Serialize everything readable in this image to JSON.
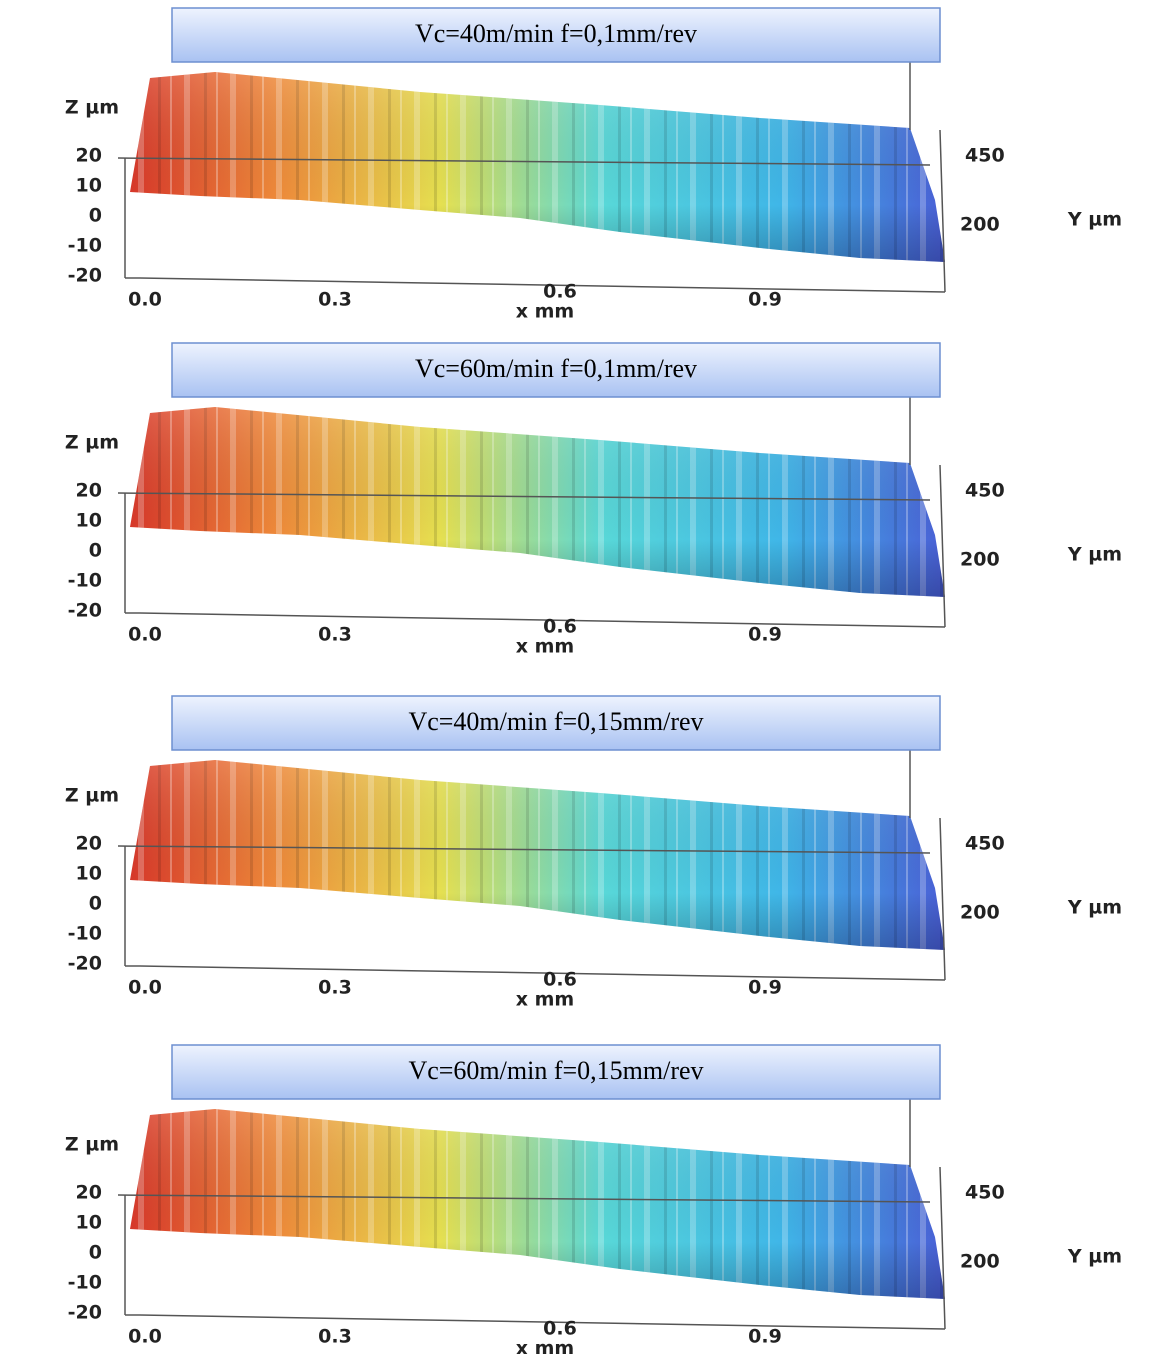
{
  "panels": [
    {
      "title": "Vc=40m/min f=0,1mm/rev",
      "z_label": "Z µm",
      "z_ticks": [
        "20",
        "10",
        "0",
        "-10",
        "-20"
      ],
      "x_ticks": [
        "0.0",
        "0.3",
        "0.6",
        "0.9"
      ],
      "x_label": "x mm",
      "y_ticks": [
        "450",
        "200"
      ],
      "y_label": "Y µm"
    },
    {
      "title": "Vc=60m/min f=0,1mm/rev",
      "z_label": "Z µm",
      "z_ticks": [
        "20",
        "10",
        "0",
        "-10",
        "-20"
      ],
      "x_ticks": [
        "0.0",
        "0.3",
        "0.6",
        "0.9"
      ],
      "x_label": "x mm",
      "y_ticks": [
        "450",
        "200"
      ],
      "y_label": "Y µm"
    },
    {
      "title": "Vc=40m/min f=0,15mm/rev",
      "z_label": "Z µm",
      "z_ticks": [
        "20",
        "10",
        "0",
        "-10",
        "-20"
      ],
      "x_ticks": [
        "0.0",
        "0.3",
        "0.6",
        "0.9"
      ],
      "x_label": "x mm",
      "y_ticks": [
        "450",
        "200"
      ],
      "y_label": "Y µm"
    },
    {
      "title": "Vc=60m/min f=0,15mm/rev",
      "z_label": "Z µm",
      "z_ticks": [
        "20",
        "10",
        "0",
        "-10",
        "-20"
      ],
      "x_ticks": [
        "0.0",
        "0.3",
        "0.6",
        "0.9"
      ],
      "x_label": "x mm",
      "y_ticks": [
        "450",
        "200"
      ],
      "y_label": "Y µm"
    }
  ]
}
